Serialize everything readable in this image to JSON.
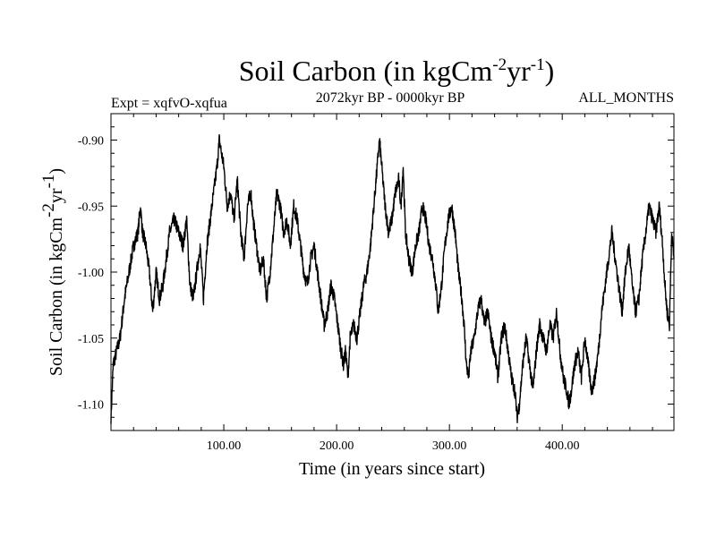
{
  "chart_data": {
    "type": "line",
    "title": "Soil Carbon (in kgCm",
    "title_exp1": "-2",
    "title_mid": "yr",
    "title_exp2": "-1",
    "title_end": ")",
    "subtitle": "2072kyr BP - 0000kyr BP",
    "expt_label": "Expt = xqfvO-xqfua",
    "months_label": "ALL_MONTHS",
    "xlabel": "Time (in years since start)",
    "ylabel_main": "Soil Carbon (in kgCm",
    "ylabel_exp1": "-2",
    "ylabel_mid": "yr",
    "ylabel_exp2": "-1",
    "ylabel_end": ")",
    "xlim": [
      0,
      499
    ],
    "ylim": [
      -1.12,
      -0.88
    ],
    "xticks": [
      100,
      200,
      300,
      400
    ],
    "xtick_labels": [
      "100.00",
      "200.00",
      "300.00",
      "400.00"
    ],
    "yticks": [
      -0.9,
      -0.95,
      -1.0,
      -1.05,
      -1.1
    ],
    "ytick_labels": [
      "-0.90",
      "-0.95",
      "-1.00",
      "-1.05",
      "-1.10"
    ],
    "series": [
      {
        "name": "Soil Carbon",
        "color": "#000000",
        "keypoints": [
          [
            0,
            -1.11
          ],
          [
            2,
            -1.07
          ],
          [
            5,
            -1.06
          ],
          [
            8,
            -1.05
          ],
          [
            12,
            -1.02
          ],
          [
            16,
            -1.0
          ],
          [
            20,
            -0.98
          ],
          [
            24,
            -0.97
          ],
          [
            26,
            -0.95
          ],
          [
            28,
            -0.97
          ],
          [
            31,
            -0.98
          ],
          [
            34,
            -1.0
          ],
          [
            37,
            -1.03
          ],
          [
            40,
            -1.0
          ],
          [
            43,
            -1.02
          ],
          [
            46,
            -1.01
          ],
          [
            49,
            -0.99
          ],
          [
            52,
            -0.97
          ],
          [
            56,
            -0.96
          ],
          [
            60,
            -0.97
          ],
          [
            64,
            -0.98
          ],
          [
            67,
            -0.96
          ],
          [
            70,
            -1.01
          ],
          [
            73,
            -1.02
          ],
          [
            76,
            -1.0
          ],
          [
            79,
            -0.98
          ],
          [
            82,
            -1.02
          ],
          [
            85,
            -0.98
          ],
          [
            88,
            -0.96
          ],
          [
            91,
            -0.94
          ],
          [
            94,
            -0.92
          ],
          [
            96,
            -0.9
          ],
          [
            98,
            -0.91
          ],
          [
            100,
            -0.92
          ],
          [
            103,
            -0.95
          ],
          [
            106,
            -0.94
          ],
          [
            109,
            -0.96
          ],
          [
            112,
            -0.93
          ],
          [
            115,
            -0.97
          ],
          [
            118,
            -0.99
          ],
          [
            121,
            -0.95
          ],
          [
            124,
            -0.94
          ],
          [
            126,
            -0.96
          ],
          [
            129,
            -0.98
          ],
          [
            132,
            -1.0
          ],
          [
            135,
            -0.99
          ],
          [
            138,
            -1.02
          ],
          [
            141,
            -1.0
          ],
          [
            144,
            -0.97
          ],
          [
            147,
            -0.94
          ],
          [
            150,
            -0.95
          ],
          [
            153,
            -0.97
          ],
          [
            156,
            -0.96
          ],
          [
            159,
            -0.98
          ],
          [
            162,
            -0.95
          ],
          [
            165,
            -0.96
          ],
          [
            168,
            -0.98
          ],
          [
            171,
            -1.0
          ],
          [
            174,
            -1.01
          ],
          [
            177,
            -0.99
          ],
          [
            180,
            -0.98
          ],
          [
            183,
            -1.0
          ],
          [
            186,
            -1.02
          ],
          [
            189,
            -1.04
          ],
          [
            192,
            -1.03
          ],
          [
            195,
            -1.01
          ],
          [
            198,
            -1.02
          ],
          [
            201,
            -1.04
          ],
          [
            204,
            -1.06
          ],
          [
            206,
            -1.07
          ],
          [
            208,
            -1.06
          ],
          [
            210,
            -1.08
          ],
          [
            212,
            -1.05
          ],
          [
            215,
            -1.04
          ],
          [
            218,
            -1.05
          ],
          [
            221,
            -1.03
          ],
          [
            224,
            -1.01
          ],
          [
            227,
            -1.0
          ],
          [
            230,
            -0.98
          ],
          [
            233,
            -0.95
          ],
          [
            236,
            -0.92
          ],
          [
            238,
            -0.9
          ],
          [
            240,
            -0.92
          ],
          [
            243,
            -0.95
          ],
          [
            246,
            -0.97
          ],
          [
            249,
            -0.96
          ],
          [
            252,
            -0.94
          ],
          [
            255,
            -0.93
          ],
          [
            257,
            -0.95
          ],
          [
            259,
            -0.92
          ],
          [
            261,
            -0.97
          ],
          [
            264,
            -0.99
          ],
          [
            267,
            -1.0
          ],
          [
            270,
            -0.98
          ],
          [
            273,
            -0.97
          ],
          [
            276,
            -0.95
          ],
          [
            279,
            -0.96
          ],
          [
            282,
            -0.98
          ],
          [
            285,
            -0.99
          ],
          [
            288,
            -1.01
          ],
          [
            290,
            -1.03
          ],
          [
            293,
            -1.01
          ],
          [
            296,
            -0.98
          ],
          [
            299,
            -0.96
          ],
          [
            302,
            -0.95
          ],
          [
            305,
            -0.97
          ],
          [
            308,
            -1.0
          ],
          [
            311,
            -1.02
          ],
          [
            313,
            -1.04
          ],
          [
            315,
            -1.07
          ],
          [
            317,
            -1.08
          ],
          [
            319,
            -1.06
          ],
          [
            322,
            -1.05
          ],
          [
            325,
            -1.03
          ],
          [
            328,
            -1.02
          ],
          [
            331,
            -1.04
          ],
          [
            334,
            -1.03
          ],
          [
            337,
            -1.05
          ],
          [
            340,
            -1.06
          ],
          [
            343,
            -1.08
          ],
          [
            346,
            -1.05
          ],
          [
            349,
            -1.04
          ],
          [
            352,
            -1.06
          ],
          [
            355,
            -1.08
          ],
          [
            358,
            -1.09
          ],
          [
            360,
            -1.11
          ],
          [
            362,
            -1.1
          ],
          [
            365,
            -1.07
          ],
          [
            368,
            -1.05
          ],
          [
            371,
            -1.07
          ],
          [
            374,
            -1.09
          ],
          [
            377,
            -1.06
          ],
          [
            380,
            -1.04
          ],
          [
            383,
            -1.05
          ],
          [
            386,
            -1.06
          ],
          [
            389,
            -1.04
          ],
          [
            392,
            -1.05
          ],
          [
            395,
            -1.03
          ],
          [
            398,
            -1.06
          ],
          [
            401,
            -1.08
          ],
          [
            404,
            -1.09
          ],
          [
            406,
            -1.1
          ],
          [
            408,
            -1.09
          ],
          [
            411,
            -1.07
          ],
          [
            414,
            -1.06
          ],
          [
            417,
            -1.08
          ],
          [
            420,
            -1.05
          ],
          [
            423,
            -1.07
          ],
          [
            426,
            -1.09
          ],
          [
            429,
            -1.08
          ],
          [
            432,
            -1.06
          ],
          [
            435,
            -1.03
          ],
          [
            438,
            -1.01
          ],
          [
            441,
            -0.99
          ],
          [
            444,
            -0.97
          ],
          [
            447,
            -0.99
          ],
          [
            450,
            -1.01
          ],
          [
            453,
            -1.03
          ],
          [
            456,
            -1.0
          ],
          [
            459,
            -0.98
          ],
          [
            462,
            -1.01
          ],
          [
            465,
            -1.03
          ],
          [
            468,
            -1.02
          ],
          [
            471,
            -0.99
          ],
          [
            474,
            -0.97
          ],
          [
            477,
            -0.95
          ],
          [
            480,
            -0.96
          ],
          [
            483,
            -0.97
          ],
          [
            486,
            -0.95
          ],
          [
            489,
            -0.98
          ],
          [
            491,
            -1.01
          ],
          [
            493,
            -1.03
          ],
          [
            495,
            -1.04
          ],
          [
            497,
            -0.97
          ],
          [
            499,
            -0.99
          ]
        ]
      }
    ]
  }
}
